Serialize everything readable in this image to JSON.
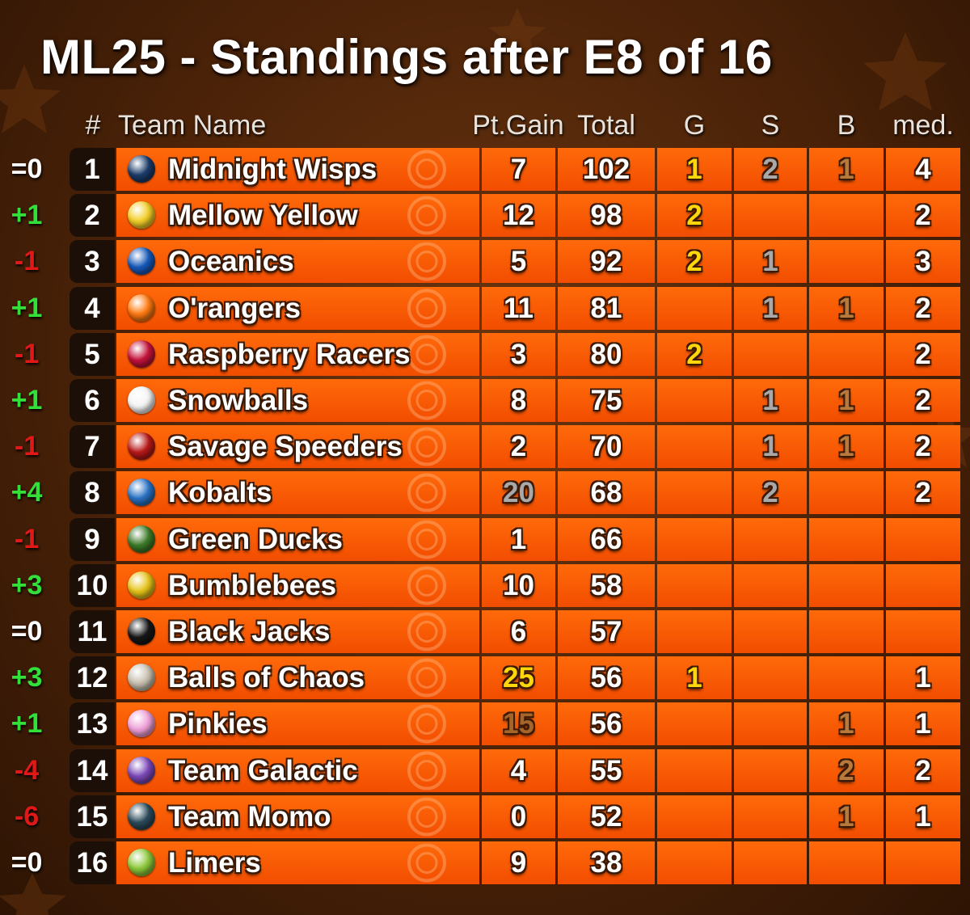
{
  "title": "ML25 - Standings after E8 of 16",
  "columns": {
    "rank": "#",
    "team": "Team Name",
    "gain": "Pt.Gain",
    "total": "Total",
    "gold": "G",
    "silver": "S",
    "bronze": "B",
    "medals": "med."
  },
  "colors": {
    "positive_change": "#33e03a",
    "negative_change": "#e01818",
    "neutral_change": "#ffffff",
    "gold": "#ffd60a",
    "silver": "#a8a8a8",
    "bronze": "#b87a3c",
    "best_gain": "#ffd60a",
    "second_gain": "#a8a8a8",
    "third_gain": "#a5652a"
  },
  "rows": [
    {
      "change": "=0",
      "rank": "1",
      "team": "Midnight Wisps",
      "ball": "#1b3b6a",
      "gain": "7",
      "total": "102",
      "g": "1",
      "s": "2",
      "b": "1",
      "med": "4"
    },
    {
      "change": "+1",
      "rank": "2",
      "team": "Mellow Yellow",
      "ball": "#f3cf28",
      "gain": "12",
      "total": "98",
      "g": "2",
      "s": "",
      "b": "",
      "med": "2"
    },
    {
      "change": "-1",
      "rank": "3",
      "team": "Oceanics",
      "ball": "#1658b8",
      "gain": "5",
      "total": "92",
      "g": "2",
      "s": "1",
      "b": "",
      "med": "3"
    },
    {
      "change": "+1",
      "rank": "4",
      "team": "O'rangers",
      "ball": "#ff7a10",
      "gain": "11",
      "total": "81",
      "g": "",
      "s": "1",
      "b": "1",
      "med": "2"
    },
    {
      "change": "-1",
      "rank": "5",
      "team": "Raspberry Racers",
      "ball": "#c4123a",
      "gain": "3",
      "total": "80",
      "g": "2",
      "s": "",
      "b": "",
      "med": "2"
    },
    {
      "change": "+1",
      "rank": "6",
      "team": "Snowballs",
      "ball": "#f4f4f4",
      "gain": "8",
      "total": "75",
      "g": "",
      "s": "1",
      "b": "1",
      "med": "2"
    },
    {
      "change": "-1",
      "rank": "7",
      "team": "Savage Speeders",
      "ball": "#b81818",
      "gain": "2",
      "total": "70",
      "g": "",
      "s": "1",
      "b": "1",
      "med": "2"
    },
    {
      "change": "+4",
      "rank": "8",
      "team": "Kobalts",
      "ball": "#2a72c4",
      "gain": "20",
      "total": "68",
      "g": "",
      "s": "2",
      "b": "",
      "med": "2"
    },
    {
      "change": "-1",
      "rank": "9",
      "team": "Green Ducks",
      "ball": "#3c7a28",
      "gain": "1",
      "total": "66",
      "g": "",
      "s": "",
      "b": "",
      "med": ""
    },
    {
      "change": "+3",
      "rank": "10",
      "team": "Bumblebees",
      "ball": "#e6c41a",
      "gain": "10",
      "total": "58",
      "g": "",
      "s": "",
      "b": "",
      "med": ""
    },
    {
      "change": "=0",
      "rank": "11",
      "team": "Black Jacks",
      "ball": "#161616",
      "gain": "6",
      "total": "57",
      "g": "",
      "s": "",
      "b": "",
      "med": ""
    },
    {
      "change": "+3",
      "rank": "12",
      "team": "Balls of Chaos",
      "ball": "#c8c0b0",
      "gain": "25",
      "total": "56",
      "g": "1",
      "s": "",
      "b": "",
      "med": "1"
    },
    {
      "change": "+1",
      "rank": "13",
      "team": "Pinkies",
      "ball": "#f0a0d8",
      "gain": "15",
      "total": "56",
      "g": "",
      "s": "",
      "b": "1",
      "med": "1"
    },
    {
      "change": "-4",
      "rank": "14",
      "team": "Team Galactic",
      "ball": "#7a48b8",
      "gain": "4",
      "total": "55",
      "g": "",
      "s": "",
      "b": "2",
      "med": "2"
    },
    {
      "change": "-6",
      "rank": "15",
      "team": "Team Momo",
      "ball": "#2a4a5a",
      "gain": "0",
      "total": "52",
      "g": "",
      "s": "",
      "b": "1",
      "med": "1"
    },
    {
      "change": "=0",
      "rank": "16",
      "team": "Limers",
      "ball": "#8cc83a",
      "gain": "9",
      "total": "38",
      "g": "",
      "s": "",
      "b": "",
      "med": ""
    }
  ]
}
